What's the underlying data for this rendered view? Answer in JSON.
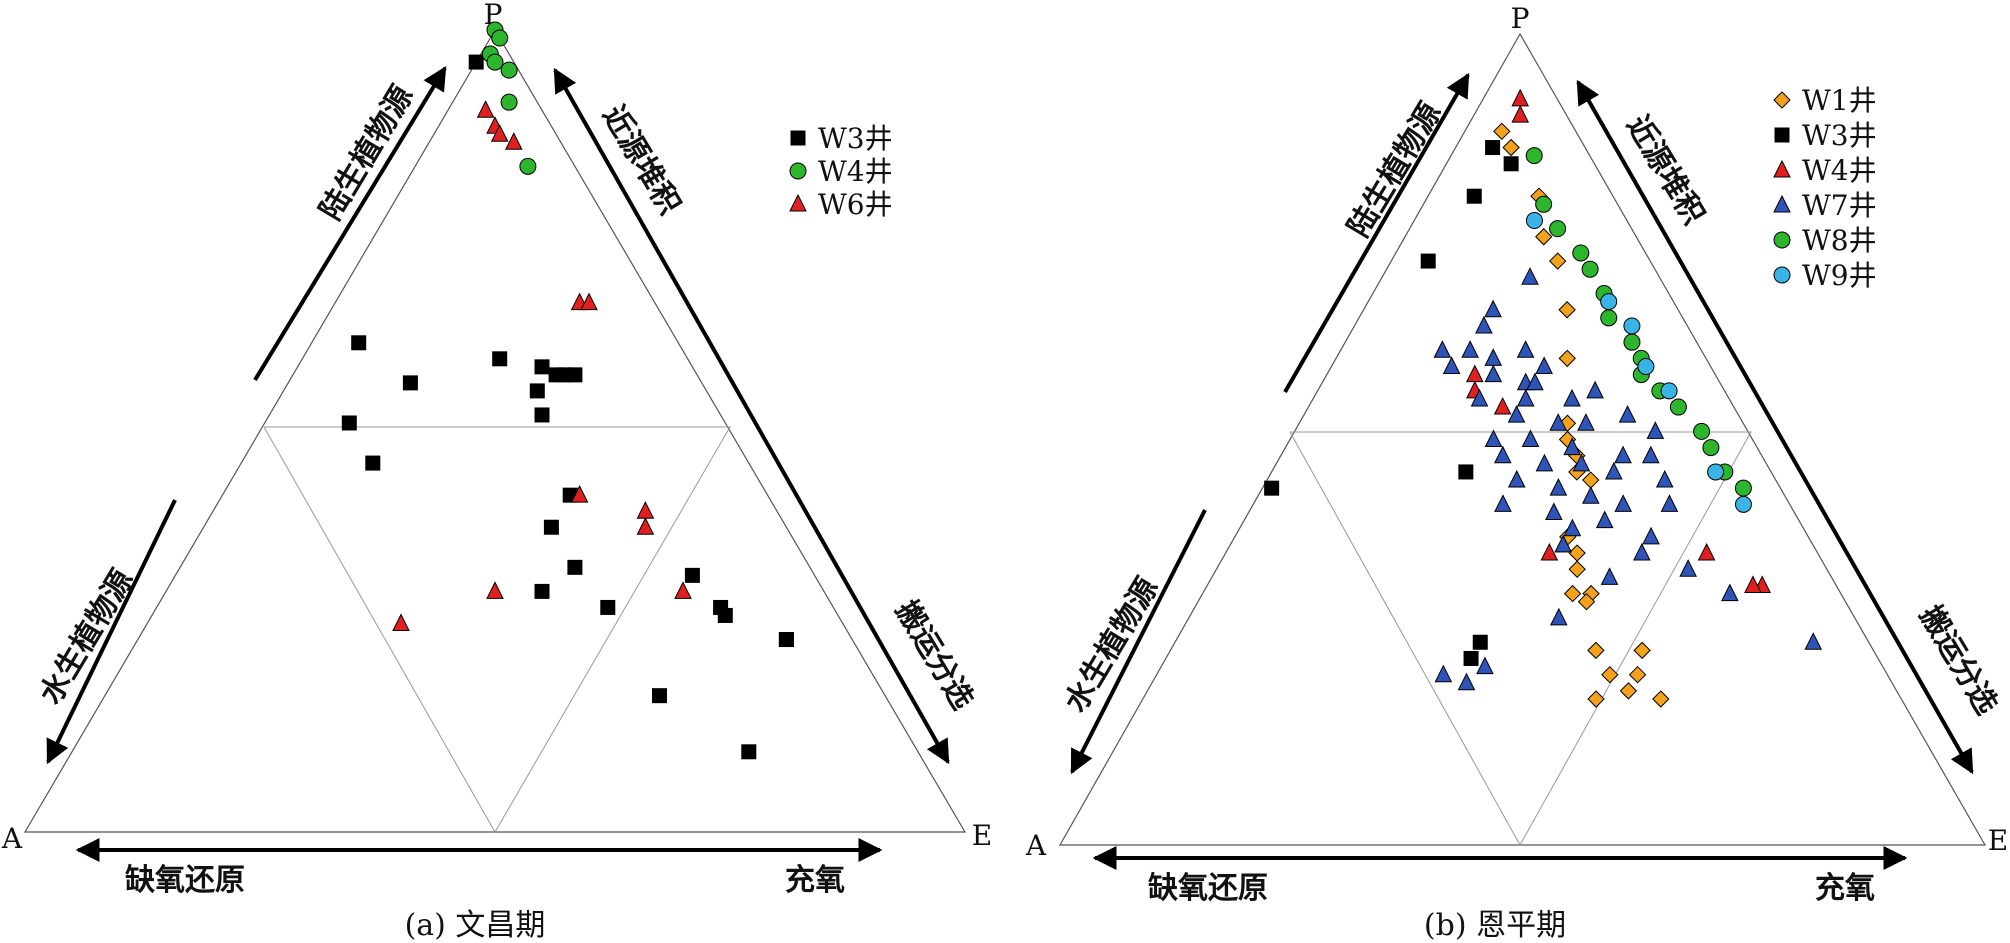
{
  "chart_data": [
    {
      "type": "ternary-scatter",
      "caption": "(a) 文昌期",
      "vertex_labels": {
        "top": "P",
        "left": "A",
        "right": "E"
      },
      "arrow_labels": {
        "left_upper": "陆生植物源",
        "left_lower": "水生植物源",
        "right_upper": "近源堆积",
        "right_lower": "搬运分选",
        "bottom_left": "缺氧还原",
        "bottom_right": "充氧"
      },
      "coords": "each point = [P, A, E], fractions summing to 1",
      "series": [
        {
          "name": "W3井",
          "marker": "square",
          "color": "#000000",
          "points": [
            [
              0.96,
              0.04,
              0.0
            ],
            [
              0.61,
              0.34,
              0.05
            ],
            [
              0.51,
              0.4,
              0.09
            ],
            [
              0.56,
              0.31,
              0.13
            ],
            [
              0.46,
              0.4,
              0.14
            ],
            [
              0.59,
              0.2,
              0.21
            ],
            [
              0.55,
              0.18,
              0.27
            ],
            [
              0.52,
              0.19,
              0.29
            ],
            [
              0.58,
              0.16,
              0.26
            ],
            [
              0.57,
              0.15,
              0.28
            ],
            [
              0.57,
              0.14,
              0.29
            ],
            [
              0.57,
              0.13,
              0.3
            ],
            [
              0.42,
              0.21,
              0.37
            ],
            [
              0.38,
              0.25,
              0.37
            ],
            [
              0.33,
              0.25,
              0.42
            ],
            [
              0.3,
              0.3,
              0.4
            ],
            [
              0.28,
              0.24,
              0.48
            ],
            [
              0.32,
              0.13,
              0.55
            ],
            [
              0.27,
              0.12,
              0.61
            ],
            [
              0.17,
              0.24,
              0.59
            ],
            [
              0.24,
              0.07,
              0.69
            ],
            [
              0.24,
              0.07,
              0.69
            ],
            [
              0.28,
              0.12,
              0.6
            ],
            [
              0.1,
              0.18,
              0.72
            ]
          ]
        },
        {
          "name": "W4井",
          "marker": "circle",
          "color": "#2db52d",
          "points": [
            [
              1.0,
              0.0,
              0.0
            ],
            [
              0.99,
              0.0,
              0.01
            ],
            [
              0.97,
              0.02,
              0.01
            ],
            [
              0.96,
              0.02,
              0.02
            ],
            [
              0.95,
              0.01,
              0.04
            ],
            [
              0.91,
              0.03,
              0.06
            ],
            [
              0.83,
              0.05,
              0.12
            ]
          ]
        },
        {
          "name": "W6井",
          "marker": "triangle",
          "color": "#e02020",
          "points": [
            [
              0.9,
              0.06,
              0.04
            ],
            [
              0.88,
              0.06,
              0.06
            ],
            [
              0.87,
              0.06,
              0.07
            ],
            [
              0.86,
              0.05,
              0.09
            ],
            [
              0.66,
              0.08,
              0.26
            ],
            [
              0.66,
              0.07,
              0.27
            ],
            [
              0.4,
              0.14,
              0.46
            ],
            [
              0.42,
              0.2,
              0.38
            ],
            [
              0.38,
              0.15,
              0.47
            ],
            [
              0.3,
              0.15,
              0.55
            ],
            [
              0.26,
              0.47,
              0.27
            ],
            [
              0.3,
              0.35,
              0.35
            ]
          ]
        }
      ]
    },
    {
      "type": "ternary-scatter",
      "caption": "(b) 恩平期",
      "vertex_labels": {
        "top": "P",
        "left": "A",
        "right": "E"
      },
      "arrow_labels": {
        "left_upper": "陆生植物源",
        "left_lower": "水生植物源",
        "right_upper": "近源堆积",
        "right_lower": "搬运分选",
        "bottom_left": "缺氧还原",
        "bottom_right": "充氧"
      },
      "coords": "each point = [P, A, E], fractions summing to 1",
      "series": [
        {
          "name": "W1井",
          "marker": "diamond",
          "color": "#f4a21c",
          "points": [
            [
              0.88,
              0.08,
              0.04
            ],
            [
              0.86,
              0.08,
              0.06
            ],
            [
              0.8,
              0.08,
              0.12
            ],
            [
              0.75,
              0.1,
              0.15
            ],
            [
              0.72,
              0.1,
              0.18
            ],
            [
              0.66,
              0.12,
              0.22
            ],
            [
              0.6,
              0.15,
              0.25
            ],
            [
              0.52,
              0.19,
              0.29
            ],
            [
              0.5,
              0.2,
              0.3
            ],
            [
              0.48,
              0.2,
              0.32
            ],
            [
              0.46,
              0.21,
              0.33
            ],
            [
              0.45,
              0.2,
              0.35
            ],
            [
              0.38,
              0.26,
              0.36
            ],
            [
              0.36,
              0.26,
              0.38
            ],
            [
              0.34,
              0.27,
              0.39
            ],
            [
              0.31,
              0.29,
              0.4
            ],
            [
              0.31,
              0.27,
              0.42
            ],
            [
              0.3,
              0.28,
              0.42
            ],
            [
              0.24,
              0.3,
              0.46
            ],
            [
              0.24,
              0.25,
              0.51
            ],
            [
              0.21,
              0.3,
              0.49
            ],
            [
              0.21,
              0.27,
              0.52
            ],
            [
              0.19,
              0.29,
              0.52
            ],
            [
              0.18,
              0.33,
              0.49
            ],
            [
              0.18,
              0.26,
              0.56
            ]
          ]
        },
        {
          "name": "W3井",
          "marker": "square",
          "color": "#000000",
          "points": [
            [
              0.86,
              0.1,
              0.04
            ],
            [
              0.84,
              0.09,
              0.07
            ],
            [
              0.8,
              0.15,
              0.05
            ],
            [
              0.72,
              0.24,
              0.04
            ],
            [
              0.46,
              0.33,
              0.21
            ],
            [
              0.44,
              0.55,
              0.01
            ],
            [
              0.25,
              0.42,
              0.33
            ],
            [
              0.23,
              0.44,
              0.33
            ]
          ]
        },
        {
          "name": "W4井",
          "marker": "triangle",
          "color": "#e02020",
          "points": [
            [
              0.92,
              0.04,
              0.04
            ],
            [
              0.9,
              0.05,
              0.05
            ],
            [
              0.58,
              0.26,
              0.16
            ],
            [
              0.56,
              0.27,
              0.17
            ],
            [
              0.54,
              0.25,
              0.21
            ],
            [
              0.37,
              0.27,
              0.36
            ],
            [
              0.36,
              0.29,
              0.35
            ],
            [
              0.36,
              0.12,
              0.52
            ],
            [
              0.32,
              0.08,
              0.6
            ],
            [
              0.32,
              0.09,
              0.59
            ]
          ]
        },
        {
          "name": "W7井",
          "marker": "triangle",
          "color": "#2f54b8",
          "points": [
            [
              0.61,
              0.28,
              0.11
            ],
            [
              0.59,
              0.28,
              0.13
            ],
            [
              0.61,
              0.25,
              0.14
            ],
            [
              0.6,
              0.23,
              0.17
            ],
            [
              0.58,
              0.24,
              0.18
            ],
            [
              0.57,
              0.21,
              0.22
            ],
            [
              0.57,
              0.2,
              0.23
            ],
            [
              0.55,
              0.27,
              0.18
            ],
            [
              0.55,
              0.22,
              0.23
            ],
            [
              0.55,
              0.17,
              0.28
            ],
            [
              0.53,
              0.24,
              0.23
            ],
            [
              0.52,
              0.2,
              0.28
            ],
            [
              0.52,
              0.17,
              0.31
            ],
            [
              0.5,
              0.28,
              0.22
            ],
            [
              0.5,
              0.24,
              0.26
            ],
            [
              0.49,
              0.2,
              0.31
            ],
            [
              0.48,
              0.15,
              0.37
            ],
            [
              0.48,
              0.28,
              0.24
            ],
            [
              0.47,
              0.24,
              0.29
            ],
            [
              0.47,
              0.2,
              0.33
            ],
            [
              0.46,
              0.17,
              0.37
            ],
            [
              0.45,
              0.28,
              0.27
            ],
            [
              0.44,
              0.24,
              0.32
            ],
            [
              0.43,
              0.21,
              0.36
            ],
            [
              0.42,
              0.18,
              0.4
            ],
            [
              0.42,
              0.31,
              0.27
            ],
            [
              0.41,
              0.26,
              0.33
            ],
            [
              0.4,
              0.21,
              0.39
            ],
            [
              0.39,
              0.25,
              0.36
            ],
            [
              0.38,
              0.17,
              0.45
            ],
            [
              0.37,
              0.27,
              0.36
            ],
            [
              0.36,
              0.19,
              0.45
            ],
            [
              0.34,
              0.15,
              0.51
            ],
            [
              0.33,
              0.24,
              0.43
            ],
            [
              0.31,
              0.12,
              0.57
            ],
            [
              0.28,
              0.32,
              0.4
            ],
            [
              0.25,
              0.06,
              0.69
            ],
            [
              0.64,
              0.22,
              0.14
            ],
            [
              0.61,
              0.19,
              0.2
            ],
            [
              0.59,
              0.18,
              0.23
            ],
            [
              0.56,
              0.14,
              0.3
            ],
            [
              0.53,
              0.12,
              0.35
            ],
            [
              0.51,
              0.1,
              0.39
            ],
            [
              0.48,
              0.12,
              0.4
            ],
            [
              0.45,
              0.12,
              0.43
            ],
            [
              0.42,
              0.13,
              0.45
            ],
            [
              0.66,
              0.2,
              0.14
            ],
            [
              0.7,
              0.14,
              0.16
            ],
            [
              0.22,
              0.43,
              0.35
            ],
            [
              0.21,
              0.48,
              0.31
            ],
            [
              0.2,
              0.46,
              0.34
            ]
          ]
        },
        {
          "name": "W8井",
          "marker": "circle",
          "color": "#2db52d",
          "points": [
            [
              0.85,
              0.06,
              0.09
            ],
            [
              0.79,
              0.08,
              0.13
            ],
            [
              0.76,
              0.08,
              0.16
            ],
            [
              0.73,
              0.07,
              0.2
            ],
            [
              0.71,
              0.07,
              0.22
            ],
            [
              0.68,
              0.07,
              0.25
            ],
            [
              0.65,
              0.08,
              0.27
            ],
            [
              0.62,
              0.07,
              0.31
            ],
            [
              0.6,
              0.07,
              0.33
            ],
            [
              0.58,
              0.08,
              0.34
            ],
            [
              0.56,
              0.07,
              0.37
            ],
            [
              0.54,
              0.06,
              0.4
            ],
            [
              0.51,
              0.05,
              0.44
            ],
            [
              0.49,
              0.05,
              0.46
            ],
            [
              0.46,
              0.05,
              0.49
            ],
            [
              0.44,
              0.04,
              0.52
            ]
          ]
        },
        {
          "name": "W9井",
          "marker": "circle",
          "color": "#3ab4e6",
          "points": [
            [
              0.77,
              0.1,
              0.13
            ],
            [
              0.67,
              0.07,
              0.26
            ],
            [
              0.64,
              0.06,
              0.3
            ],
            [
              0.59,
              0.07,
              0.34
            ],
            [
              0.56,
              0.06,
              0.38
            ],
            [
              0.46,
              0.06,
              0.48
            ],
            [
              0.42,
              0.05,
              0.53
            ]
          ]
        }
      ]
    }
  ]
}
